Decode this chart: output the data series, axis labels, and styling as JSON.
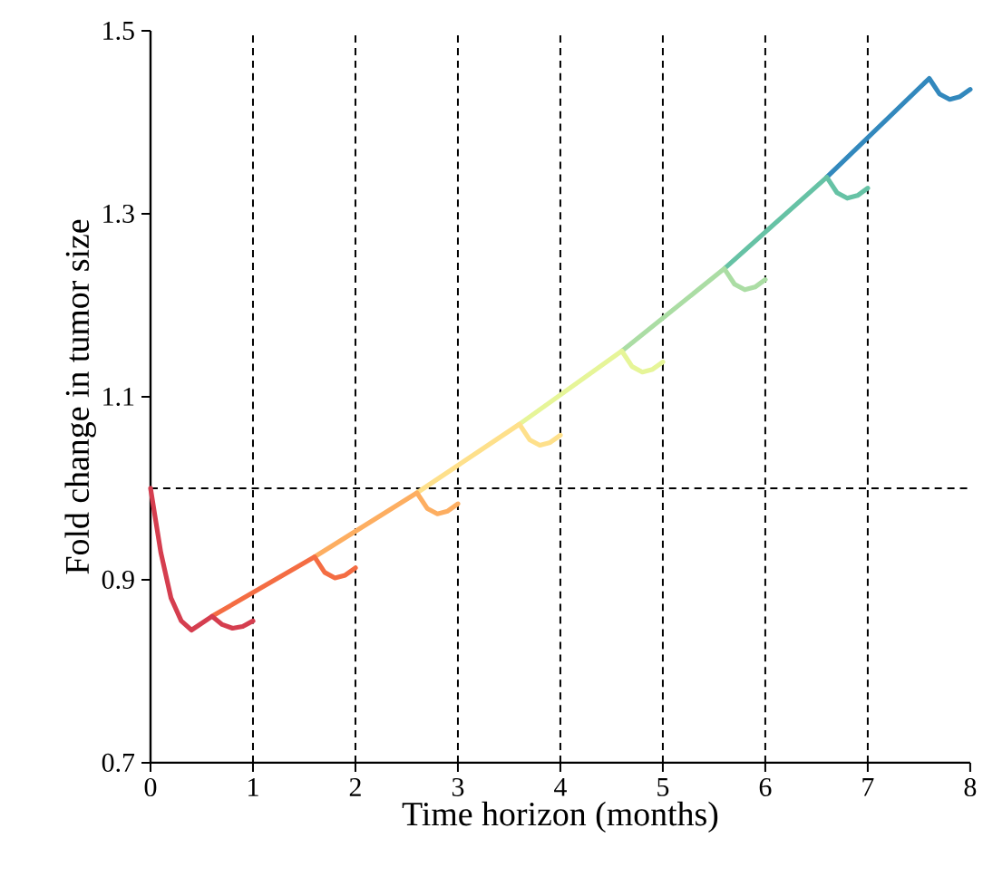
{
  "chart_data": {
    "type": "line",
    "xlabel": "Time horizon (months)",
    "ylabel": "Fold change in tumor size",
    "xlim": [
      0,
      8
    ],
    "ylim": [
      0.7,
      1.5
    ],
    "xticks": [
      0,
      1,
      2,
      3,
      4,
      5,
      6,
      7,
      8
    ],
    "yticks": [
      0.7,
      0.9,
      1.1,
      1.3,
      1.5
    ],
    "grid": false,
    "series": [
      {
        "color": "#3288bd",
        "x": [
          6.6,
          7.6,
          7.7,
          7.8,
          7.9,
          8
        ],
        "values": [
          1.34,
          1.448,
          1.431,
          1.425,
          1.428,
          1.436
        ]
      },
      {
        "color": "#66c2a5",
        "x": [
          5.6,
          6.6,
          6.7,
          6.8,
          6.9,
          7
        ],
        "values": [
          1.24,
          1.34,
          1.323,
          1.317,
          1.32,
          1.328
        ]
      },
      {
        "color": "#abdda4",
        "x": [
          4.6,
          5.6,
          5.7,
          5.8,
          5.9,
          6
        ],
        "values": [
          1.15,
          1.24,
          1.223,
          1.217,
          1.22,
          1.228
        ]
      },
      {
        "color": "#e6f598",
        "x": [
          3.6,
          4.6,
          4.7,
          4.8,
          4.9,
          5
        ],
        "values": [
          1.07,
          1.15,
          1.133,
          1.127,
          1.13,
          1.138
        ]
      },
      {
        "color": "#fee08b",
        "x": [
          2.6,
          3.6,
          3.7,
          3.8,
          3.9,
          4
        ],
        "values": [
          0.995,
          1.07,
          1.053,
          1.047,
          1.05,
          1.058
        ]
      },
      {
        "color": "#fdae61",
        "x": [
          1.6,
          2.6,
          2.7,
          2.8,
          2.9,
          3
        ],
        "values": [
          0.925,
          0.995,
          0.978,
          0.972,
          0.975,
          0.983
        ]
      },
      {
        "color": "#f46d43",
        "x": [
          0.6,
          1.6,
          1.7,
          1.8,
          1.9,
          2
        ],
        "values": [
          0.86,
          0.925,
          0.908,
          0.902,
          0.905,
          0.913
        ]
      },
      {
        "color": "#d53e4f",
        "x": [
          0,
          0.1,
          0.2,
          0.3,
          0.4,
          0.6,
          0.7,
          0.8,
          0.9,
          1
        ],
        "values": [
          1.0,
          0.93,
          0.88,
          0.855,
          0.845,
          0.86,
          0.851,
          0.847,
          0.849,
          0.855
        ]
      }
    ],
    "ref_lines": [
      {
        "axis": "x",
        "value": 1,
        "color": "#000000",
        "line_style": "dashed"
      },
      {
        "axis": "x",
        "value": 2,
        "color": "#000000",
        "line_style": "dashed"
      },
      {
        "axis": "x",
        "value": 3,
        "color": "#000000",
        "line_style": "dashed"
      },
      {
        "axis": "x",
        "value": 4,
        "color": "#000000",
        "line_style": "dashed"
      },
      {
        "axis": "x",
        "value": 5,
        "color": "#000000",
        "line_style": "dashed"
      },
      {
        "axis": "x",
        "value": 6,
        "color": "#000000",
        "line_style": "dashed"
      },
      {
        "axis": "x",
        "value": 7,
        "color": "#000000",
        "line_style": "dashed"
      },
      {
        "axis": "y",
        "value": 1.0,
        "color": "#000000",
        "line_style": "dashed"
      }
    ]
  }
}
